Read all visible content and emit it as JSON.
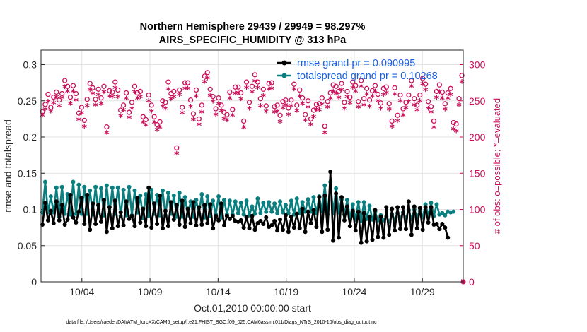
{
  "chart_data": {
    "type": "line",
    "title": "Northern Hemisphere 29439 / 29949 = 98.297%",
    "subtitle": "AIRS_SPECIFIC_HUMIDITY @ 313 hPa",
    "xlabel": "Oct.01,2010 00:00:00 start",
    "ylabel": "rmse and totalspread",
    "ylabel_right": "# of obs: o=possible; *=evaluated",
    "footer": "data file: /Users/raeder/DAI/ATM_forcXX/CAM6_setup/f.e21.FHIST_BGC.f09_025.CAM6assim.011/Diags_NTrS_2010-10/obs_diag_output.nc",
    "x_ticks": [
      "10/04",
      "10/09",
      "10/14",
      "10/19",
      "10/24",
      "10/29"
    ],
    "x_tick_days": [
      4,
      9,
      14,
      19,
      24,
      29
    ],
    "xlim": [
      1,
      32
    ],
    "ylim": [
      0,
      0.32
    ],
    "y_ticks": [
      "0",
      "0.05",
      "0.1",
      "0.15",
      "0.2",
      "0.25",
      "0.3"
    ],
    "y_tick_values": [
      0,
      0.05,
      0.1,
      0.15,
      0.2,
      0.25,
      0.3
    ],
    "ylim_right": [
      0,
      320
    ],
    "y_ticks_right": [
      "0",
      "50",
      "100",
      "150",
      "200",
      "250",
      "300"
    ],
    "y_tick_values_right": [
      0,
      50,
      100,
      150,
      200,
      250,
      300
    ],
    "series": [
      {
        "name": "rmse",
        "legend": "rmse grand pr = 0.090995",
        "color": "#000000",
        "values": [
          0.079,
          0.109,
          0.085,
          0.098,
          0.081,
          0.111,
          0.085,
          0.106,
          0.079,
          0.086,
          0.12,
          0.089,
          0.082,
          0.097,
          0.116,
          0.08,
          0.12,
          0.072,
          0.108,
          0.08,
          0.106,
          0.083,
          0.113,
          0.069,
          0.103,
          0.074,
          0.112,
          0.077,
          0.096,
          0.078,
          0.111,
          0.087,
          0.091,
          0.077,
          0.116,
          0.082,
          0.101,
          0.077,
          0.13,
          0.075,
          0.108,
          0.08,
          0.119,
          0.074,
          0.098,
          0.077,
          0.11,
          0.086,
          0.106,
          0.079,
          0.112,
          0.076,
          0.101,
          0.081,
          0.11,
          0.078,
          0.103,
          0.079,
          0.106,
          0.081,
          0.107,
          0.074,
          0.091,
          0.085,
          0.108,
          0.078,
          0.091,
          0.087,
          0.091,
          0.084,
          0.083,
          0.085,
          0.075,
          0.089,
          0.074,
          0.091,
          0.072,
          0.081,
          0.084,
          0.08,
          0.089,
          0.076,
          0.078,
          0.084,
          0.071,
          0.086,
          0.072,
          0.092,
          0.069,
          0.09,
          0.075,
          0.094,
          0.074,
          0.101,
          0.069,
          0.097,
          0.081,
          0.099,
          0.076,
          0.117,
          0.069,
          0.119,
          0.072,
          0.152,
          0.057,
          0.122,
          0.061,
          0.117,
          0.085,
          0.104,
          0.077,
          0.098,
          0.071,
          0.097,
          0.054,
          0.095,
          0.056,
          0.09,
          0.058,
          0.099,
          0.062,
          0.09,
          0.061,
          0.103,
          0.065,
          0.101,
          0.071,
          0.103,
          0.073,
          0.103,
          0.073,
          0.111,
          0.065,
          0.104,
          0.074,
          0.102,
          0.072,
          0.103,
          0.082,
          0.103,
          0.079,
          0.08,
          0.073,
          0.08,
          0.075,
          0.061
        ]
      },
      {
        "name": "totalspread",
        "legend": "totalspread grand pr = 0.10268",
        "color": "#0a7f80",
        "values": [
          0.096,
          0.138,
          0.096,
          0.118,
          0.096,
          0.13,
          0.09,
          0.131,
          0.094,
          0.121,
          0.093,
          0.138,
          0.094,
          0.134,
          0.094,
          0.131,
          0.094,
          0.126,
          0.093,
          0.131,
          0.096,
          0.129,
          0.092,
          0.133,
          0.093,
          0.13,
          0.094,
          0.13,
          0.091,
          0.127,
          0.092,
          0.131,
          0.092,
          0.126,
          0.096,
          0.119,
          0.088,
          0.121,
          0.091,
          0.127,
          0.094,
          0.12,
          0.092,
          0.126,
          0.092,
          0.123,
          0.094,
          0.119,
          0.09,
          0.123,
          0.09,
          0.117,
          0.092,
          0.111,
          0.09,
          0.113,
          0.094,
          0.121,
          0.089,
          0.118,
          0.091,
          0.112,
          0.093,
          0.118,
          0.089,
          0.113,
          0.093,
          0.112,
          0.093,
          0.111,
          0.095,
          0.109,
          0.093,
          0.112,
          0.092,
          0.104,
          0.094,
          0.115,
          0.095,
          0.109,
          0.097,
          0.11,
          0.097,
          0.108,
          0.095,
          0.111,
          0.096,
          0.106,
          0.095,
          0.112,
          0.093,
          0.115,
          0.095,
          0.11,
          0.097,
          0.114,
          0.097,
          0.117,
          0.095,
          0.118,
          0.098,
          0.133,
          0.093,
          0.138,
          0.095,
          0.129,
          0.096,
          0.114,
          0.093,
          0.113,
          0.088,
          0.107,
          0.086,
          0.11,
          0.084,
          0.11,
          0.087,
          0.105,
          0.086,
          0.097,
          0.085,
          0.092,
          0.085,
          0.09,
          0.083,
          0.093,
          0.086,
          0.095,
          0.088,
          0.096,
          0.088,
          0.099,
          0.087,
          0.1,
          0.09,
          0.098,
          0.089,
          0.107,
          0.092,
          0.109,
          0.091,
          0.107,
          0.093,
          0.095,
          0.092,
          0.097,
          0.096,
          0.097
        ]
      },
      {
        "name": "obs possible (o)",
        "axis": "right",
        "color": "#c8105a",
        "values": [
          235,
          245,
          259,
          241,
          255,
          262,
          251,
          260,
          278,
          270,
          255,
          271,
          260,
          233,
          241,
          223,
          252,
          274,
          268,
          252,
          266,
          254,
          270,
          214,
          264,
          262,
          276,
          265,
          237,
          244,
          261,
          234,
          248,
          270,
          261,
          263,
          228,
          224,
          258,
          244,
          228,
          217,
          221,
          250,
          248,
          276,
          260,
          263,
          185,
          265,
          241,
          275,
          275,
          251,
          232,
          265,
          225,
          244,
          284,
          289,
          266,
          256,
          239,
          254,
          244,
          234,
          231,
          262,
          238,
          269,
          269,
          261,
          222,
          276,
          248,
          270,
          286,
          276,
          253,
          266,
          243,
          274,
          275,
          242,
          244,
          230,
          249,
          251,
          240,
          251,
          273,
          244,
          265,
          254,
          231,
          250,
          225,
          237,
          245,
          246,
          254,
          215,
          249,
          261,
          272,
          270,
          263,
          274,
          248,
          263,
          255,
          276,
          271,
          249,
          278,
          253,
          267,
          251,
          264,
          271,
          259,
          247,
          267,
          269,
          246,
          222,
          268,
          230,
          258,
          239,
          248,
          258,
          278,
          253,
          244,
          258,
          281,
          273,
          249,
          242,
          222,
          263,
          272,
          262,
          246,
          261,
          267,
          220,
          218,
          253,
          285
        ]
      },
      {
        "name": "obs evaluated (*)",
        "axis": "right",
        "color": "#c8105a",
        "values": [
          229,
          237,
          248,
          234,
          246,
          254,
          242,
          253,
          268,
          262,
          245,
          262,
          250,
          223,
          232,
          213,
          242,
          264,
          259,
          243,
          257,
          245,
          261,
          205,
          255,
          254,
          267,
          254,
          228,
          236,
          252,
          226,
          238,
          261,
          252,
          254,
          219,
          215,
          249,
          234,
          219,
          209,
          212,
          241,
          238,
          265,
          251,
          254,
          176,
          257,
          232,
          266,
          266,
          241,
          223,
          255,
          216,
          233,
          275,
          280,
          256,
          248,
          230,
          245,
          235,
          224,
          222,
          252,
          229,
          259,
          260,
          251,
          212,
          267,
          238,
          261,
          276,
          267,
          242,
          256,
          234,
          265,
          266,
          233,
          234,
          220,
          239,
          243,
          230,
          242,
          265,
          235,
          255,
          245,
          222,
          240,
          216,
          227,
          237,
          236,
          244,
          205,
          240,
          252,
          262,
          259,
          253,
          264,
          238,
          254,
          246,
          267,
          262,
          240,
          269,
          243,
          258,
          241,
          255,
          262,
          249,
          238,
          257,
          260,
          237,
          213,
          258,
          221,
          249,
          229,
          239,
          248,
          269,
          243,
          236,
          249,
          272,
          264,
          238,
          233,
          212,
          253,
          261,
          252,
          237,
          252,
          257,
          210,
          207,
          243,
          275
        ]
      }
    ],
    "extra_points": [
      {
        "day": 32,
        "value_right": 0,
        "color": "#c8105a"
      }
    ],
    "grid": true,
    "legend_position": "top-right"
  }
}
